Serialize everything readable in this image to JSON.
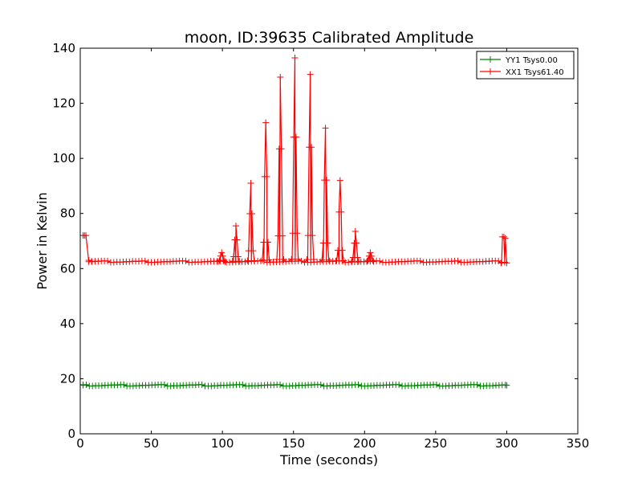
{
  "chart_data": {
    "type": "line",
    "title": "moon, ID:39635 Calibrated Amplitude",
    "xlabel": "Time (seconds)",
    "ylabel": "Power in Kelvin",
    "xlim": [
      0,
      350
    ],
    "ylim": [
      0,
      140
    ],
    "xticks": [
      0,
      50,
      100,
      150,
      200,
      250,
      300,
      350
    ],
    "yticks": [
      0,
      20,
      40,
      60,
      80,
      100,
      120,
      140
    ],
    "grid": false,
    "legend_position": "top-right",
    "series": [
      {
        "name": "YY1 Tsys0.00",
        "color": "#008000",
        "marker": "+",
        "baseline": {
          "x_start": 2,
          "x_end": 300,
          "step": 2.2,
          "y": 17.6
        },
        "points": [
          [
            2,
            17.6
          ],
          [
            300,
            17.6
          ]
        ]
      },
      {
        "name": "XX1 Tsys61.40",
        "color": "#ff0000",
        "marker": "+",
        "baseline": {
          "x_start": 6,
          "x_end": 300,
          "step": 2.2,
          "y": 62.5
        },
        "points": [
          [
            2,
            72.0
          ],
          [
            3,
            72.0
          ],
          [
            4,
            72.0
          ],
          [
            6,
            63.0
          ],
          [
            8,
            62.6
          ],
          [
            296,
            62.0
          ],
          [
            297,
            71.5
          ],
          [
            298,
            71.5
          ],
          [
            299,
            71.0
          ],
          [
            300,
            62.0
          ]
        ],
        "peaks": [
          {
            "x": 99.5,
            "y": 65.8
          },
          {
            "x": 109.5,
            "y": 75.5
          },
          {
            "x": 120.0,
            "y": 91.0
          },
          {
            "x": 130.5,
            "y": 113.0
          },
          {
            "x": 140.7,
            "y": 129.5
          },
          {
            "x": 151.0,
            "y": 136.5
          },
          {
            "x": 161.8,
            "y": 130.5
          },
          {
            "x": 172.5,
            "y": 111.0
          },
          {
            "x": 182.8,
            "y": 92.0
          },
          {
            "x": 193.5,
            "y": 73.5
          },
          {
            "x": 204.0,
            "y": 65.8
          }
        ]
      }
    ]
  }
}
